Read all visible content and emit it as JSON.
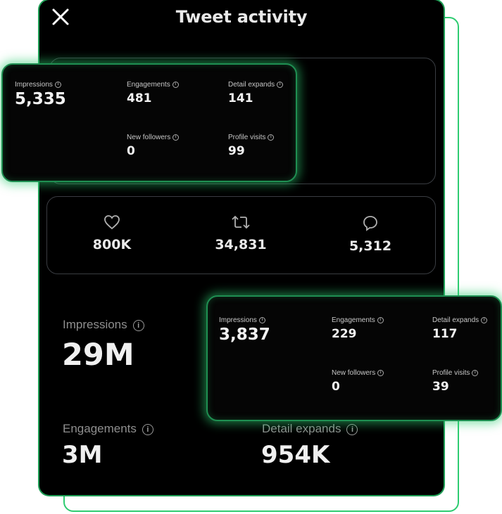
{
  "header": {
    "title": "Tweet activity",
    "close_icon": "close-icon"
  },
  "card_top": {
    "impressions": {
      "label": "Impressions",
      "value": "5,335"
    },
    "engagements": {
      "label": "Engagements",
      "value": "481"
    },
    "detail_expands": {
      "label": "Detail expands",
      "value": "141"
    },
    "new_followers": {
      "label": "New followers",
      "value": "0"
    },
    "profile_visits": {
      "label": "Profile visits",
      "value": "99"
    }
  },
  "reactions": {
    "likes": {
      "icon": "heart-icon",
      "value": "800K"
    },
    "retweets": {
      "icon": "retweet-icon",
      "value": "34,831"
    },
    "replies": {
      "icon": "reply-icon",
      "value": "5,312"
    }
  },
  "card_bottom": {
    "impressions": {
      "label": "Impressions",
      "value": "3,837"
    },
    "engagements": {
      "label": "Engagements",
      "value": "229"
    },
    "detail_expands": {
      "label": "Detail expands",
      "value": "117"
    },
    "new_followers": {
      "label": "New followers",
      "value": "0"
    },
    "profile_visits": {
      "label": "Profile visits",
      "value": "39"
    }
  },
  "summary": {
    "impressions": {
      "label": "Impressions",
      "value": "29M"
    },
    "engagements": {
      "label": "Engagements",
      "value": "3M"
    },
    "detail_expands": {
      "label": "Detail expands",
      "value": "954K"
    }
  },
  "colors": {
    "accent": "#2ecc71",
    "panel_bg": "#000000",
    "border": "#3a3d42"
  }
}
